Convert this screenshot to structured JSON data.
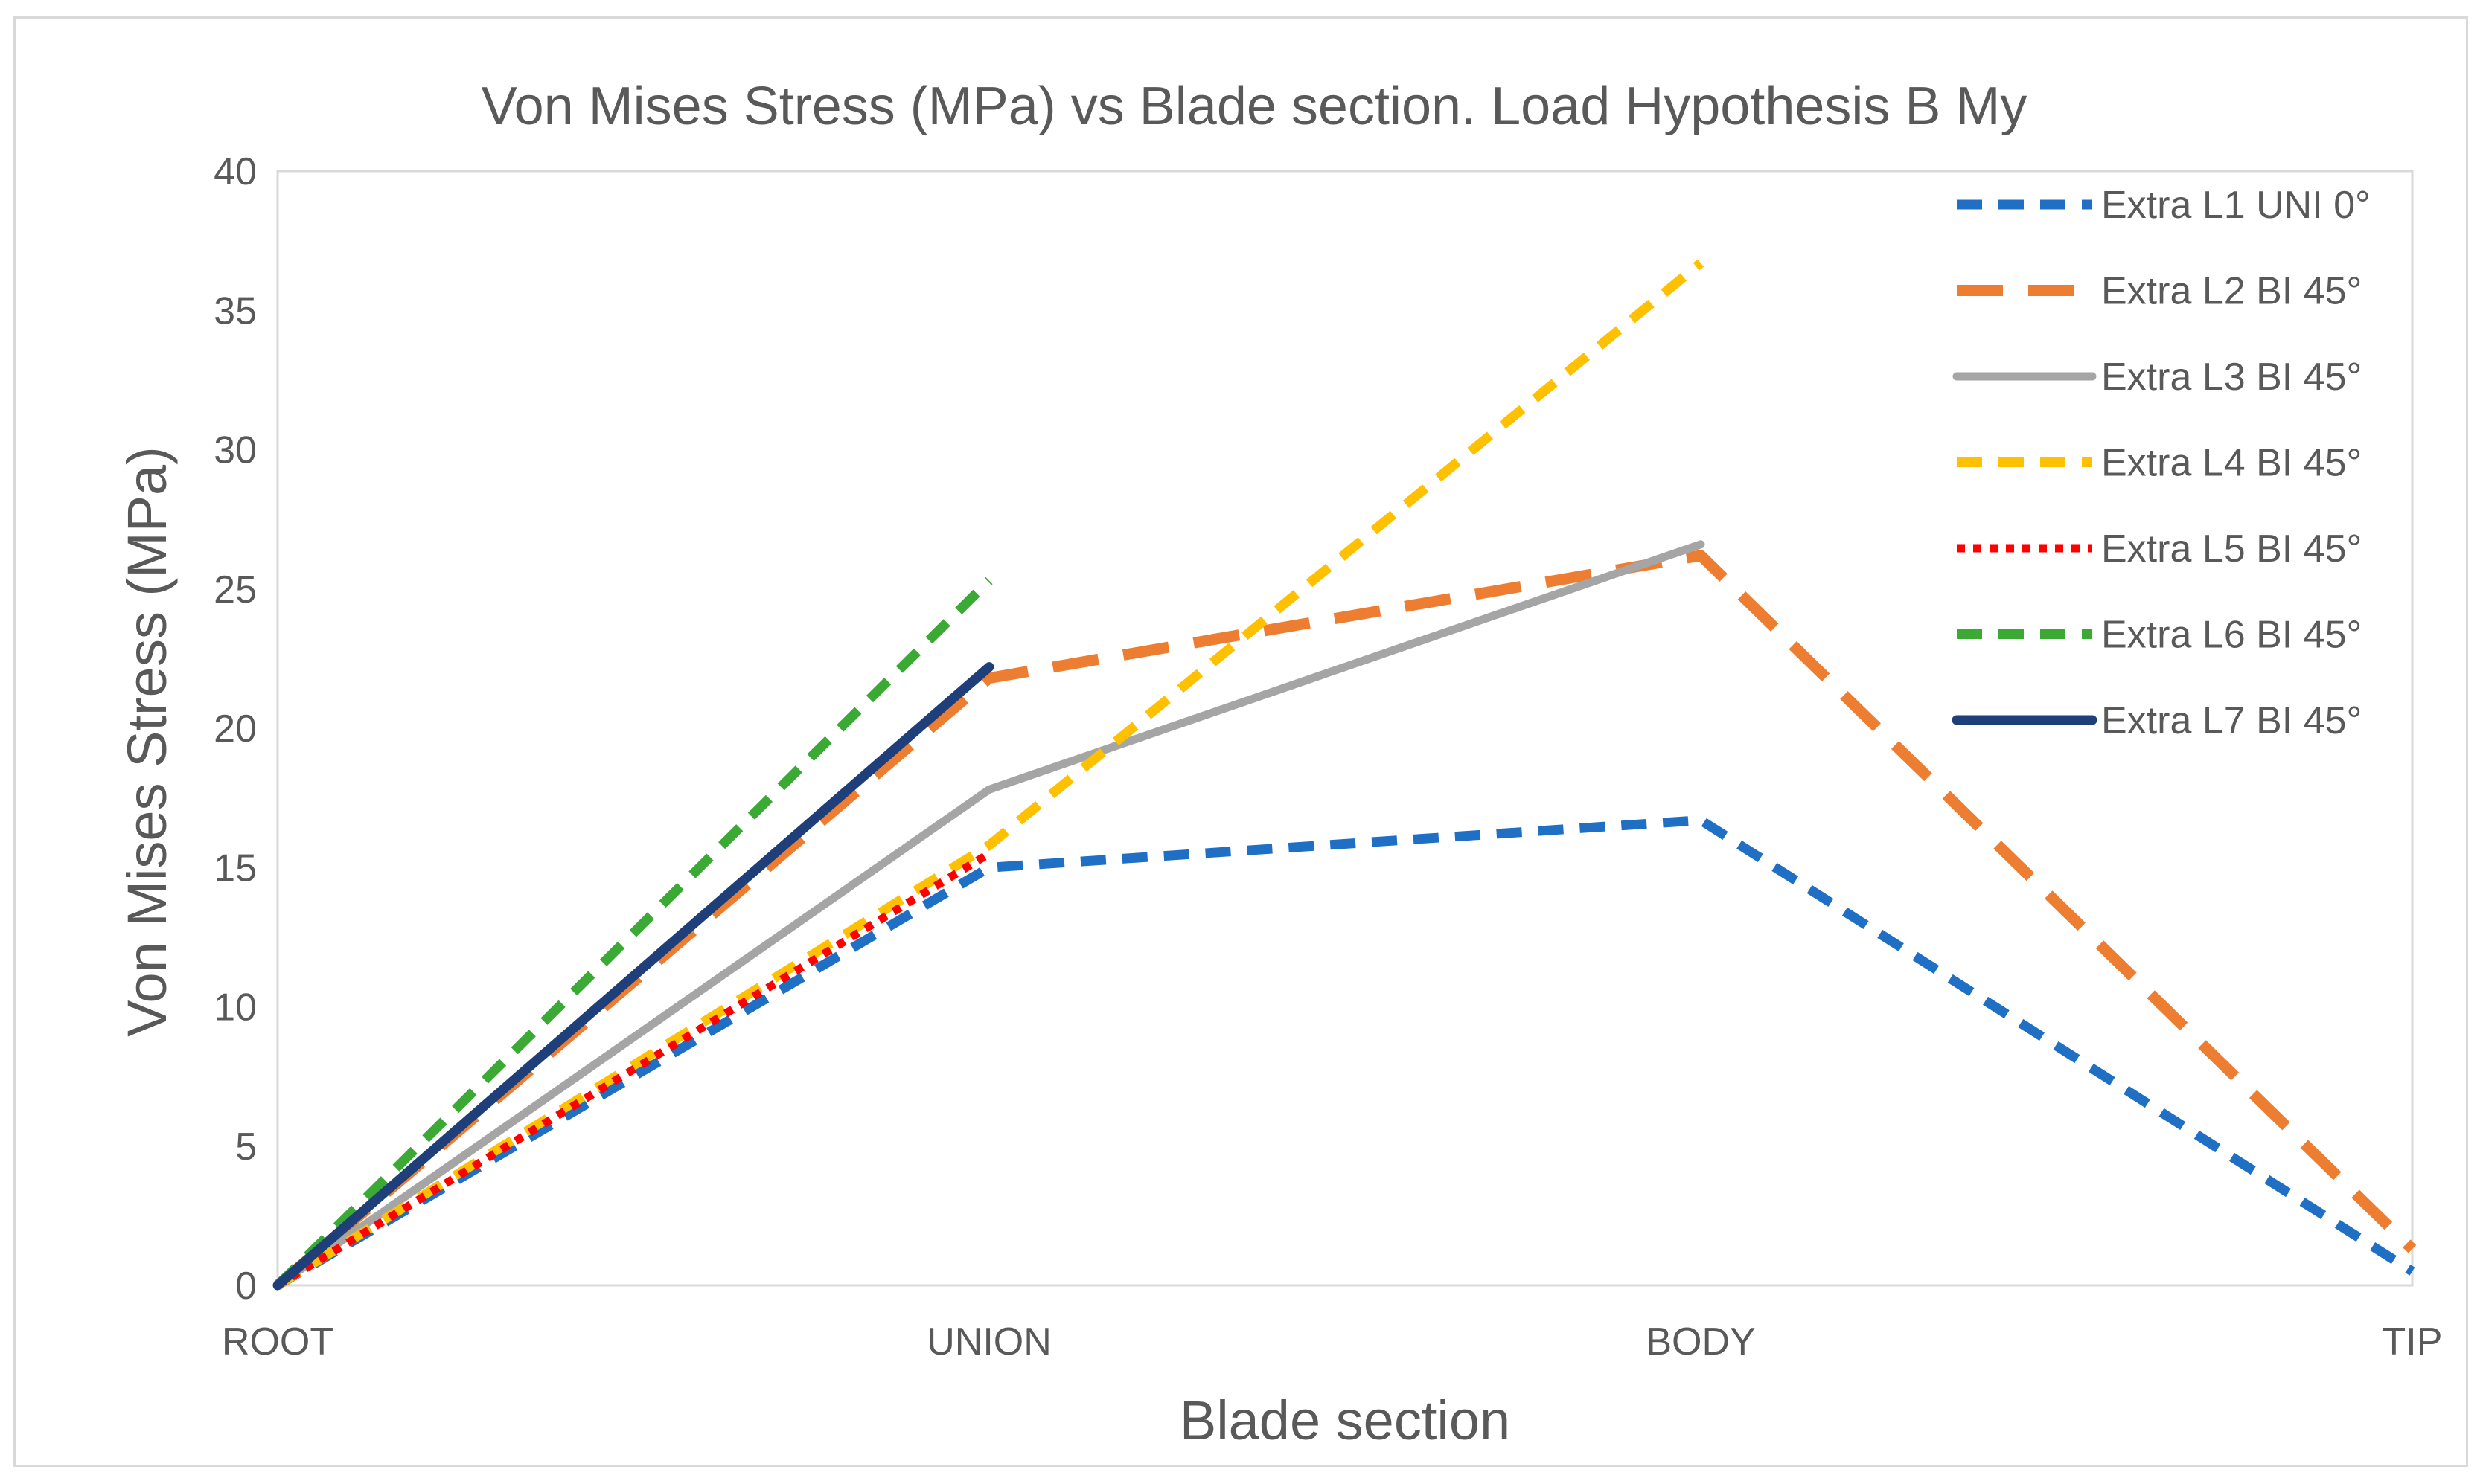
{
  "chart_data": {
    "type": "line",
    "title": "Von Mises Stress (MPa) vs Blade section. Load Hypothesis B My",
    "xlabel": "Blade section",
    "ylabel": "Von Mises Stress (MPa)",
    "categories": [
      "ROOT",
      "UNION",
      "BODY",
      "TIP"
    ],
    "ylim": [
      0,
      40
    ],
    "yticks": [
      "0",
      "5",
      "10",
      "15",
      "20",
      "25",
      "30",
      "35",
      "40"
    ],
    "grid": false,
    "legend_position": "top-right",
    "series": [
      {
        "name": "Extra L1 UNI 0°",
        "values": [
          0,
          15,
          16.7,
          0.5
        ],
        "color": "#1f6fc5",
        "style": "dashed"
      },
      {
        "name": "Extra L2 BI 45°",
        "values": [
          0,
          21.8,
          26.2,
          1.3
        ],
        "color": "#ed7d31",
        "style": "long-dashed"
      },
      {
        "name": "Extra L3 BI 45°",
        "values": [
          0,
          17.8,
          26.6,
          null
        ],
        "color": "#a5a5a5",
        "style": "solid"
      },
      {
        "name": "Extra L4 BI 45°",
        "values": [
          0,
          15.8,
          36.7,
          null
        ],
        "color": "#ffc000",
        "style": "dashed"
      },
      {
        "name": "Extra L5 BI 45°",
        "values": [
          0,
          15.5,
          null,
          null
        ],
        "color": "#ff0000",
        "style": "dotted"
      },
      {
        "name": "Extra L6 BI 45°",
        "values": [
          0,
          25.3,
          null,
          null
        ],
        "color": "#3aaa35",
        "style": "dashed"
      },
      {
        "name": "Extra L7 BI 45°",
        "values": [
          0,
          22.2,
          null,
          null
        ],
        "color": "#1f3f7a",
        "style": "solid-thick"
      }
    ]
  }
}
